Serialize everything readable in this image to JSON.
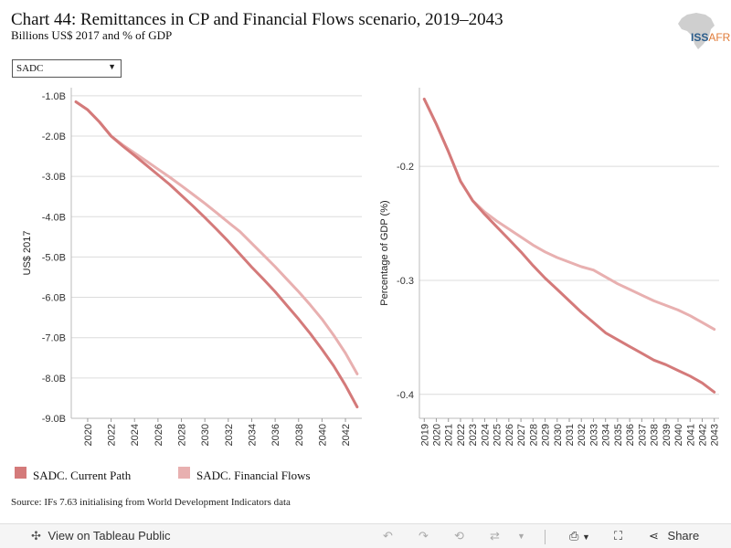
{
  "header": {
    "title": "Chart 44: Remittances in CP and Financial Flows scenario, 2019–2043",
    "subtitle": "Billions US$ 2017 and % of GDP"
  },
  "logo": {
    "text_main": "ISS",
    "text_accent": "AFRICA"
  },
  "filter": {
    "selected": "SADC"
  },
  "legend": [
    {
      "label": "SADC. Current Path",
      "color": "#d47a7a"
    },
    {
      "label": "SADC. Financial Flows",
      "color": "#e8b0b0"
    }
  ],
  "source": "Source: IFs 7.63 initialising from World Development Indicators data",
  "toolbar": {
    "view_label": "View on Tableau Public",
    "share_label": "Share"
  },
  "chart_data": [
    {
      "type": "line",
      "ylabel": "US$ 2017",
      "y_ticks": [
        -1,
        -2,
        -3,
        -4,
        -5,
        -6,
        -7,
        -8,
        -9
      ],
      "y_tick_labels": [
        "-1.0B",
        "-2.0B",
        "-3.0B",
        "-4.0B",
        "-5.0B",
        "-6.0B",
        "-7.0B",
        "-8.0B",
        "-9.0B"
      ],
      "ylim": [
        -9.0,
        -0.8
      ],
      "x_ticks": [
        2020,
        2022,
        2024,
        2026,
        2028,
        2030,
        2032,
        2034,
        2036,
        2038,
        2040,
        2042
      ],
      "xlim": [
        2018.6,
        2043.4
      ],
      "x": [
        2019,
        2020,
        2021,
        2022,
        2023,
        2024,
        2025,
        2026,
        2027,
        2028,
        2029,
        2030,
        2031,
        2032,
        2033,
        2034,
        2035,
        2036,
        2037,
        2038,
        2039,
        2040,
        2041,
        2042,
        2043
      ],
      "series": [
        {
          "name": "SADC. Current Path",
          "color": "#d47a7a",
          "values": [
            -1.15,
            -1.35,
            -1.65,
            -2.0,
            -2.25,
            -2.48,
            -2.72,
            -2.96,
            -3.2,
            -3.47,
            -3.74,
            -4.02,
            -4.31,
            -4.61,
            -4.93,
            -5.25,
            -5.55,
            -5.86,
            -6.2,
            -6.54,
            -6.9,
            -7.29,
            -7.7,
            -8.18,
            -8.72
          ]
        },
        {
          "name": "SADC. Financial Flows",
          "color": "#e8b0b0",
          "values": [
            -1.15,
            -1.35,
            -1.65,
            -2.0,
            -2.22,
            -2.42,
            -2.62,
            -2.82,
            -3.02,
            -3.23,
            -3.45,
            -3.67,
            -3.9,
            -4.14,
            -4.37,
            -4.66,
            -4.95,
            -5.24,
            -5.55,
            -5.86,
            -6.19,
            -6.54,
            -6.94,
            -7.38,
            -7.9
          ]
        }
      ]
    },
    {
      "type": "line",
      "ylabel": "Percentage of GDP (%)",
      "y_ticks": [
        -0.2,
        -0.3,
        -0.4
      ],
      "y_tick_labels": [
        "-0.2",
        "-0.3",
        "-0.4"
      ],
      "ylim": [
        -0.421,
        -0.131
      ],
      "x_ticks": [
        2019,
        2020,
        2021,
        2022,
        2023,
        2024,
        2025,
        2026,
        2027,
        2028,
        2029,
        2030,
        2031,
        2032,
        2033,
        2034,
        2035,
        2036,
        2037,
        2038,
        2039,
        2040,
        2041,
        2042,
        2043
      ],
      "xlim": [
        2018.6,
        2043.4
      ],
      "x": [
        2019,
        2020,
        2021,
        2022,
        2023,
        2024,
        2025,
        2026,
        2027,
        2028,
        2029,
        2030,
        2031,
        2032,
        2033,
        2034,
        2035,
        2036,
        2037,
        2038,
        2039,
        2040,
        2041,
        2042,
        2043
      ],
      "series": [
        {
          "name": "SADC. Current Path",
          "color": "#d47a7a",
          "values": [
            -0.141,
            -0.163,
            -0.187,
            -0.213,
            -0.23,
            -0.242,
            -0.253,
            -0.264,
            -0.275,
            -0.287,
            -0.298,
            -0.308,
            -0.318,
            -0.328,
            -0.337,
            -0.346,
            -0.352,
            -0.358,
            -0.364,
            -0.37,
            -0.374,
            -0.379,
            -0.384,
            -0.39,
            -0.398
          ]
        },
        {
          "name": "SADC. Financial Flows",
          "color": "#e8b0b0",
          "values": [
            -0.141,
            -0.163,
            -0.187,
            -0.213,
            -0.23,
            -0.24,
            -0.248,
            -0.255,
            -0.262,
            -0.269,
            -0.275,
            -0.28,
            -0.284,
            -0.288,
            -0.291,
            -0.297,
            -0.303,
            -0.308,
            -0.313,
            -0.318,
            -0.322,
            -0.326,
            -0.331,
            -0.337,
            -0.343
          ]
        }
      ]
    }
  ]
}
